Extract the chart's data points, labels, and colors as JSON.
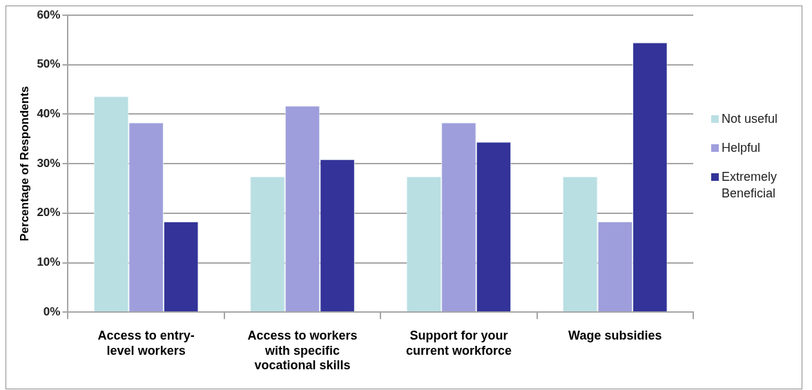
{
  "chart_data": {
    "type": "bar",
    "ylabel": "Percentage of Respondents",
    "categories": [
      "Access to entry-level workers",
      "Access to workers with specific vocational skills",
      "Support for your current workforce",
      "Wage subsidies"
    ],
    "series": [
      {
        "name": "Not useful",
        "color": "#b9dfe3",
        "values": [
          43.6,
          27.4,
          27.4,
          27.4
        ]
      },
      {
        "name": "Helpful",
        "color": "#9f9edc",
        "values": [
          38.3,
          41.7,
          38.3,
          18.3
        ]
      },
      {
        "name": "Extremely Beneficial",
        "color": "#333399",
        "values": [
          18.3,
          30.9,
          34.4,
          54.5
        ]
      }
    ],
    "ylim": [
      0,
      60
    ],
    "yticks": [
      {
        "value": 0,
        "label": "0%"
      },
      {
        "value": 10,
        "label": "10%"
      },
      {
        "value": 20,
        "label": "20%"
      },
      {
        "value": 30,
        "label": "30%"
      },
      {
        "value": 40,
        "label": "40%"
      },
      {
        "value": 50,
        "label": "50%"
      },
      {
        "value": 60,
        "label": "60%"
      }
    ],
    "grid": "y",
    "legend": "right"
  }
}
